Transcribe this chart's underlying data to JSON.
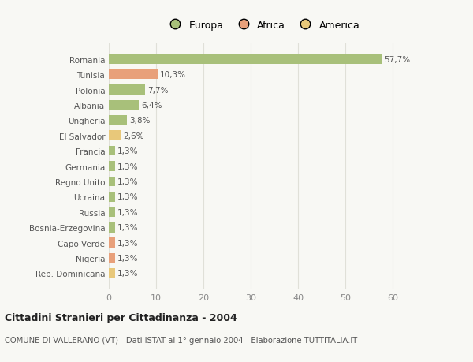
{
  "countries": [
    "Romania",
    "Tunisia",
    "Polonia",
    "Albania",
    "Ungheria",
    "El Salvador",
    "Francia",
    "Germania",
    "Regno Unito",
    "Ucraina",
    "Russia",
    "Bosnia-Erzegovina",
    "Capo Verde",
    "Nigeria",
    "Rep. Dominicana"
  ],
  "values": [
    57.7,
    10.3,
    7.7,
    6.4,
    3.8,
    2.6,
    1.3,
    1.3,
    1.3,
    1.3,
    1.3,
    1.3,
    1.3,
    1.3,
    1.3
  ],
  "labels": [
    "57,7%",
    "10,3%",
    "7,7%",
    "6,4%",
    "3,8%",
    "2,6%",
    "1,3%",
    "1,3%",
    "1,3%",
    "1,3%",
    "1,3%",
    "1,3%",
    "1,3%",
    "1,3%",
    "1,3%"
  ],
  "continent": [
    "Europa",
    "Africa",
    "Europa",
    "Europa",
    "Europa",
    "America",
    "Europa",
    "Europa",
    "Europa",
    "Europa",
    "Europa",
    "Europa",
    "Africa",
    "Africa",
    "America"
  ],
  "colors": {
    "Europa": "#a8c07a",
    "Africa": "#e8a07a",
    "America": "#e8c87a"
  },
  "legend_labels": [
    "Europa",
    "Africa",
    "America"
  ],
  "legend_colors": [
    "#a8c07a",
    "#e8a07a",
    "#e8c87a"
  ],
  "title": "Cittadini Stranieri per Cittadinanza - 2004",
  "subtitle": "COMUNE DI VALLERANO (VT) - Dati ISTAT al 1° gennaio 2004 - Elaborazione TUTTITALIA.IT",
  "xlim": [
    0,
    65
  ],
  "xticks": [
    0,
    10,
    20,
    30,
    40,
    50,
    60
  ],
  "bg_color": "#f8f8f4",
  "plot_bg_color": "#f8f8f4",
  "grid_color": "#e0e0d8",
  "bar_height": 0.65,
  "label_fontsize": 7.5,
  "ytick_fontsize": 7.5,
  "xtick_fontsize": 8
}
